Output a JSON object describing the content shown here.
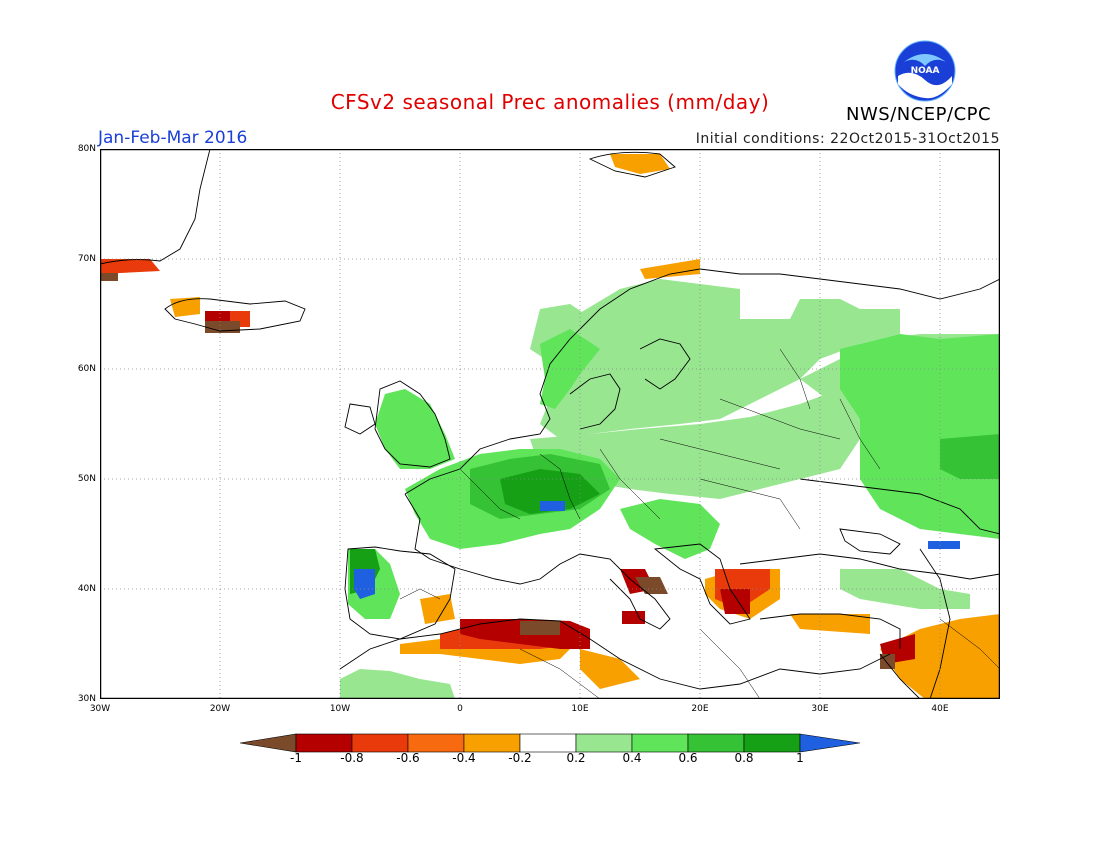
{
  "title": "CFSv2 seasonal Prec anomalies (mm/day)",
  "season": "Jan-Feb-Mar 2016",
  "initial_conditions": "Initial conditions: 22Oct2015-31Oct2015",
  "agency": "NWS/NCEP/CPC",
  "logo_text": "NOAA",
  "map": {
    "lon_range": [
      -30,
      45
    ],
    "lat_range": [
      30,
      80
    ],
    "lat_ticks": [
      "80N",
      "70N",
      "60N",
      "50N",
      "40N",
      "30N"
    ],
    "lon_ticks": [
      "30W",
      "20W",
      "10W",
      "0",
      "10E",
      "20E",
      "30E",
      "40E"
    ]
  },
  "colors": {
    "brown": "#7a4a2a",
    "darkred": "#b50000",
    "red": "#e83a0a",
    "orangered": "#f86a10",
    "orange": "#f8a000",
    "white": "#ffffff",
    "palegreen": "#98e690",
    "lightgreen": "#5fe45a",
    "green": "#35c235",
    "darkgreen": "#16a016",
    "blue": "#1f60e0"
  },
  "colorbar": {
    "labels": [
      "-1",
      "-0.8",
      "-0.6",
      "-0.4",
      "-0.2",
      "0.2",
      "0.4",
      "0.6",
      "0.8",
      "1"
    ]
  }
}
